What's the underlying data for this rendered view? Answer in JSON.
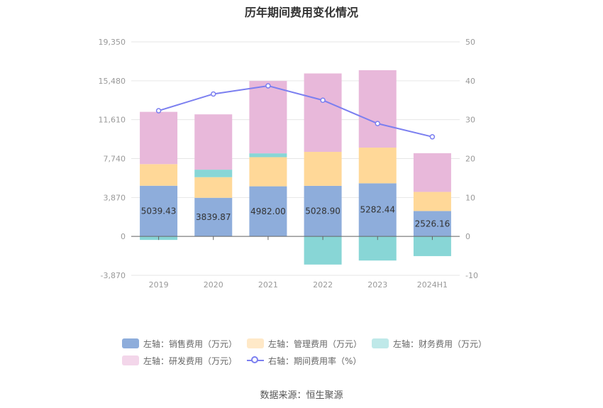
{
  "title": "历年期间费用变化情况",
  "source": "数据来源：恒生聚源",
  "chart_data": {
    "type": "bar",
    "stacked": true,
    "categories": [
      "2019",
      "2020",
      "2021",
      "2022",
      "2023",
      "2024H1"
    ],
    "left_axis": {
      "ticks": [
        "19,350",
        "15,480",
        "11,610",
        "7,740",
        "3,870",
        "0",
        "-3,870"
      ],
      "min": -3870,
      "max": 19350
    },
    "right_axis": {
      "ticks": [
        "50",
        "40",
        "30",
        "20",
        "10",
        "0",
        "-10"
      ],
      "min": -10,
      "max": 50
    },
    "series": [
      {
        "name": "左轴：销售费用（万元）",
        "color": "#8eaddb",
        "axis": "left",
        "values": [
          5039.43,
          3839.87,
          4982.0,
          5028.9,
          5282.44,
          2526.16
        ],
        "labels": [
          "5039.43",
          "3839.87",
          "4982.00",
          "5028.90",
          "5282.44",
          "2526.16"
        ]
      },
      {
        "name": "左轴：管理费用（万元）",
        "color": "#ffd898",
        "axis": "left",
        "values": [
          2150,
          2050,
          2900,
          3380,
          3550,
          1900
        ]
      },
      {
        "name": "左轴：财务费用（万元）",
        "color": "#88d6d6",
        "axis": "left",
        "values": [
          -350,
          750,
          380,
          -2800,
          -2400,
          -1960
        ]
      },
      {
        "name": "左轴：研发费用（万元）",
        "color": "#e8b8da",
        "axis": "left",
        "values": [
          5200,
          5500,
          7200,
          7800,
          7700,
          3850
        ]
      },
      {
        "name": "右轴：期间费用率（%）",
        "color": "#7b7ff0",
        "axis": "right",
        "type": "line",
        "values": [
          32.3,
          36.6,
          38.7,
          35.0,
          29.0,
          25.6
        ]
      }
    ],
    "legend_position": "bottom",
    "grid": true
  }
}
